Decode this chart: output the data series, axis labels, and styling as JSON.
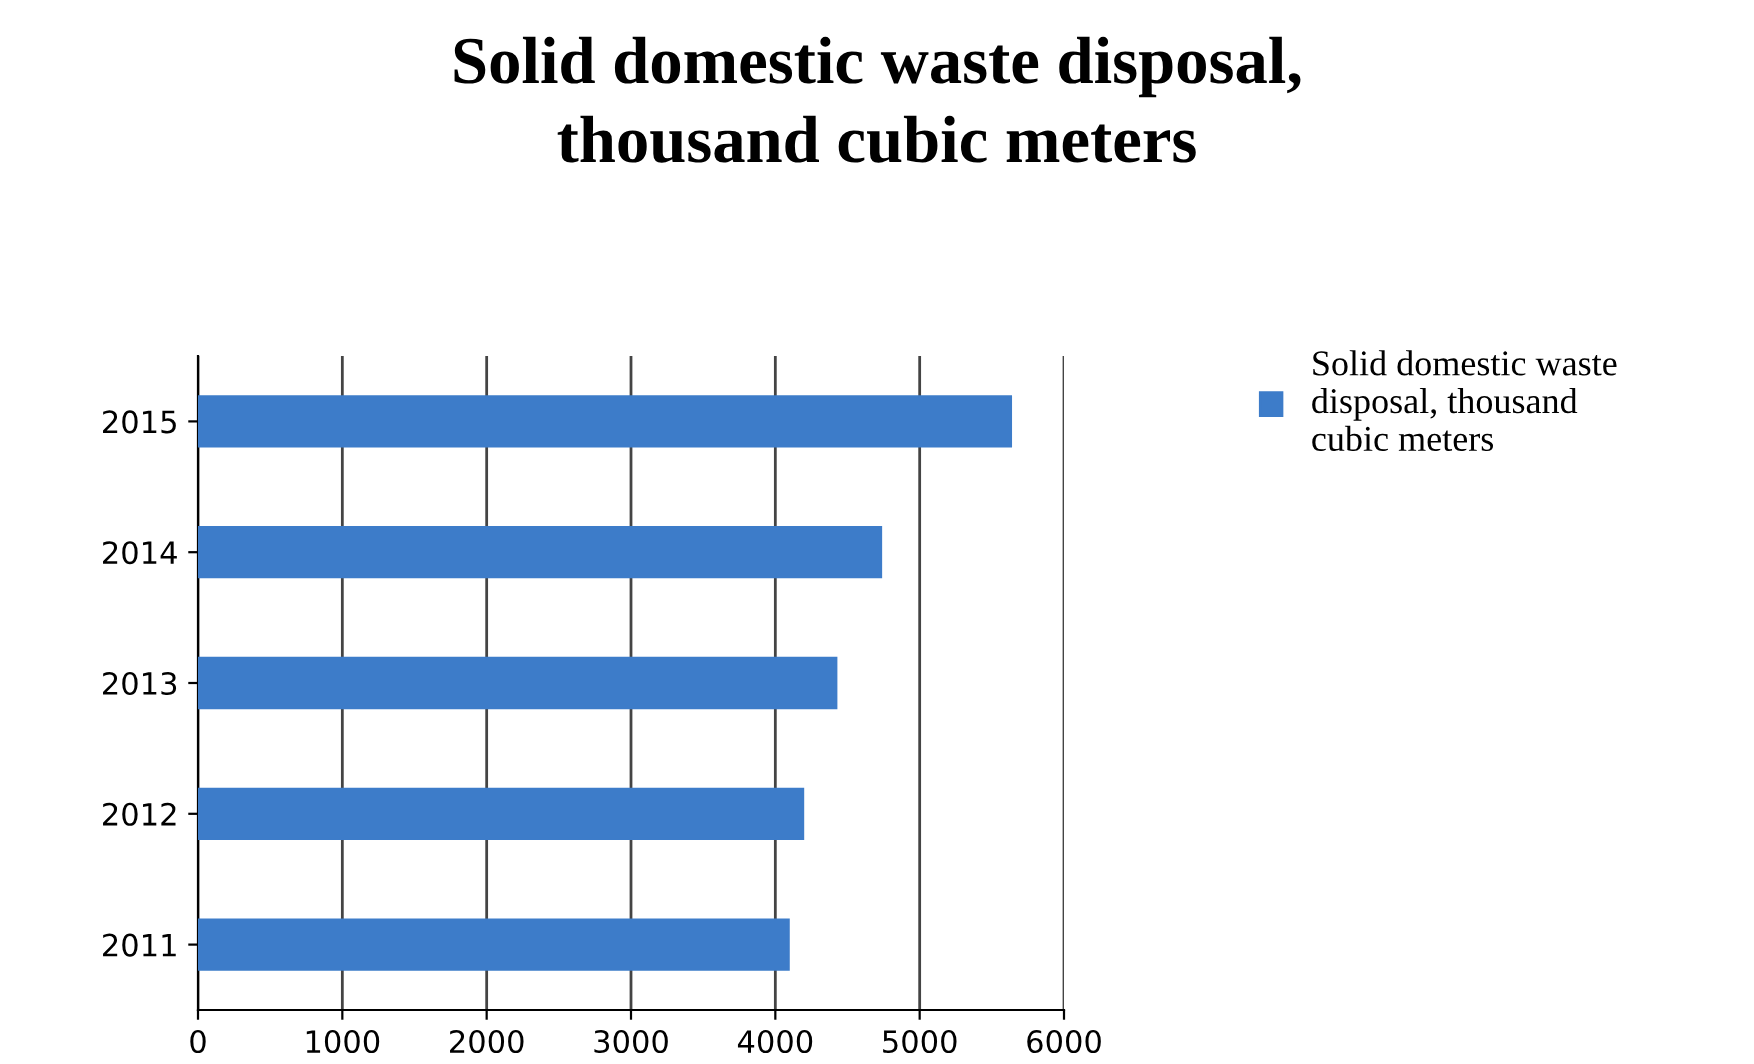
{
  "chart_data": {
    "type": "bar",
    "orientation": "horizontal",
    "title": "Solid domestic waste disposal,\nthousand cubic meters",
    "categories": [
      "2015",
      "2014",
      "2013",
      "2012",
      "2011"
    ],
    "series": [
      {
        "name": "Solid domestic waste\ndisposal, thousand\ncubic meters",
        "color": "#3d7cc9",
        "values": [
          5640,
          4740,
          4430,
          4200,
          4100
        ]
      }
    ],
    "xlim": [
      0,
      6000
    ],
    "xticks": [
      0,
      1000,
      2000,
      3000,
      4000,
      5000,
      6000
    ],
    "grid": "x",
    "legend": "right"
  }
}
